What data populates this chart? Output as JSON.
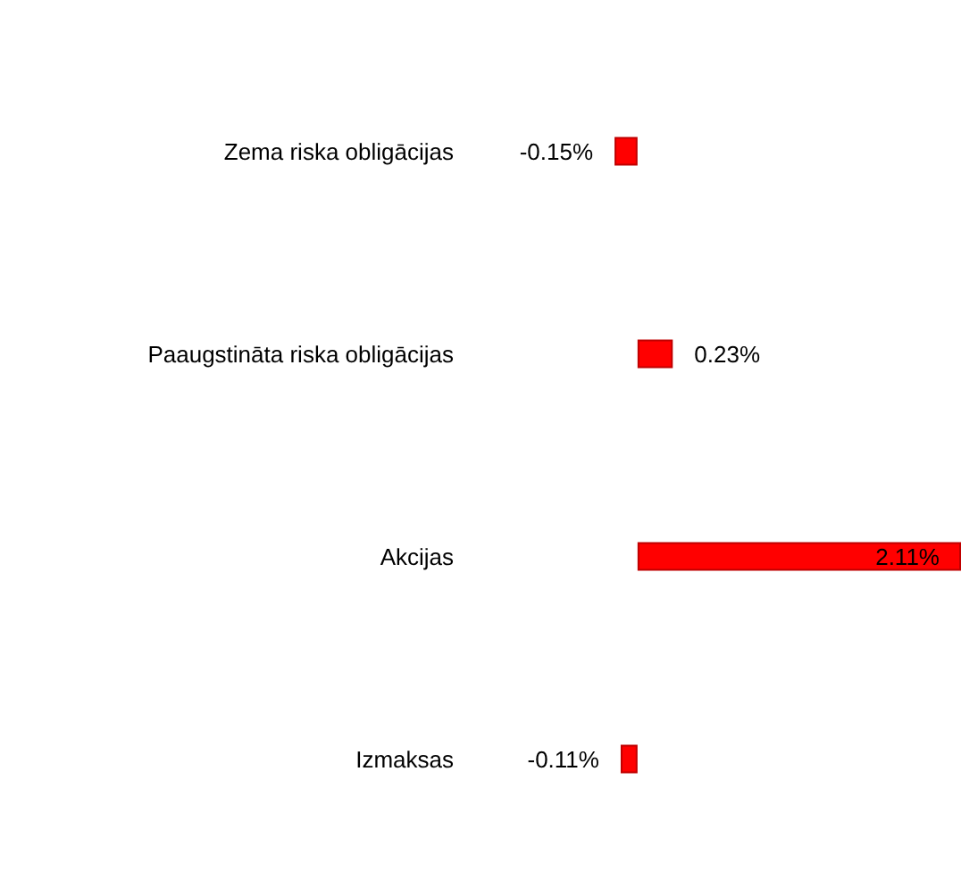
{
  "chart_data": {
    "type": "bar",
    "orientation": "horizontal",
    "categories": [
      "Zema riska obligācijas",
      "Paaugstināta riska obligācijas",
      "Akcijas",
      "Izmaksas"
    ],
    "values": [
      -0.15,
      0.23,
      2.11,
      -0.11
    ],
    "value_labels": [
      "-0.15%",
      "0.23%",
      "2.11%",
      "-0.11%"
    ],
    "color": "#ff0000"
  }
}
